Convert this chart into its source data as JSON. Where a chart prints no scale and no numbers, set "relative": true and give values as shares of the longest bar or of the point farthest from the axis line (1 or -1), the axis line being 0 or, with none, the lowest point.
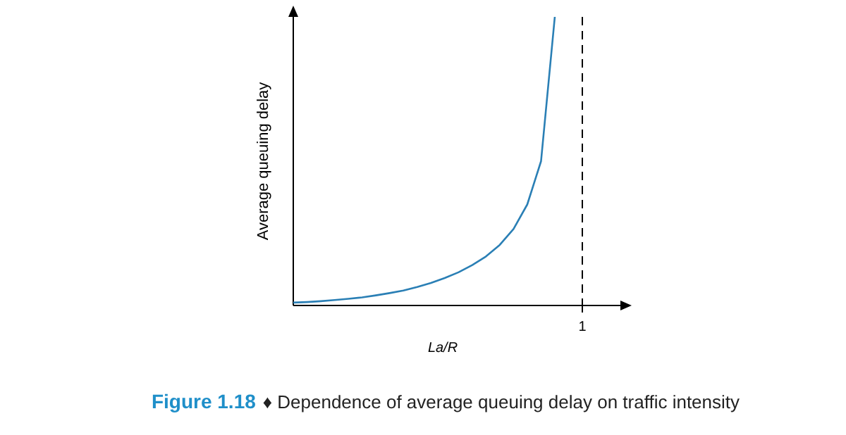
{
  "chart_data": {
    "type": "line",
    "title": "Figure 1.18",
    "subtitle": "♦ Dependence of average queuing delay on traffic intensity",
    "xlabel": "La/R",
    "ylabel": "Average queuing delay",
    "relative": true,
    "marker": "none",
    "line_style": "solid",
    "categories": [
      null,
      null,
      null,
      null,
      null,
      null,
      null,
      null,
      null,
      null,
      null,
      null,
      null,
      null,
      null,
      null,
      null,
      null,
      null,
      null,
      null,
      null
    ],
    "ref_lines": [
      {
        "axis": "x",
        "label": "1",
        "color": "#000000",
        "line_style": "dashed"
      }
    ],
    "series": [
      {
        "color": "#2a7fb5",
        "values": [
          0.01,
          0.012,
          0.015,
          0.019,
          0.023,
          0.028,
          0.035,
          0.043,
          0.052,
          0.064,
          0.078,
          0.095,
          0.115,
          0.14,
          0.17,
          0.21,
          0.265,
          0.35,
          0.5,
          1,
          null,
          null
        ]
      }
    ]
  }
}
